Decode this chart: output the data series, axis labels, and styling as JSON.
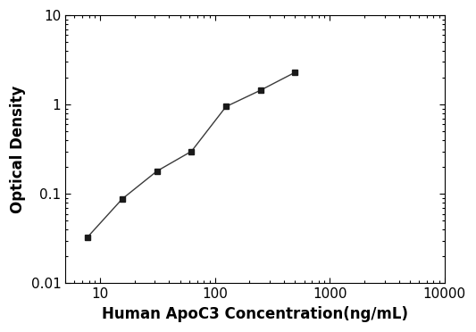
{
  "x": [
    7.8,
    15.6,
    31.25,
    62.5,
    125,
    250,
    500
  ],
  "y": [
    0.033,
    0.088,
    0.18,
    0.3,
    0.95,
    1.45,
    2.3
  ],
  "xlabel": "Human ApoC3 Concentration(ng/mL)",
  "ylabel": "Optical Density",
  "xlim": [
    5,
    10000
  ],
  "ylim": [
    0.01,
    10
  ],
  "line_color": "#3a3a3a",
  "marker": "s",
  "marker_color": "#1a1a1a",
  "marker_size": 5,
  "background_color": "#ffffff",
  "xlabel_fontsize": 12,
  "ylabel_fontsize": 12,
  "tick_labelsize": 11,
  "ytick_labels": [
    "0.01",
    "0.1",
    "1",
    "10"
  ],
  "ytick_values": [
    0.01,
    0.1,
    1,
    10
  ],
  "xtick_labels": [
    "10",
    "100",
    "1000",
    "10000"
  ],
  "xtick_values": [
    10,
    100,
    1000,
    10000
  ]
}
